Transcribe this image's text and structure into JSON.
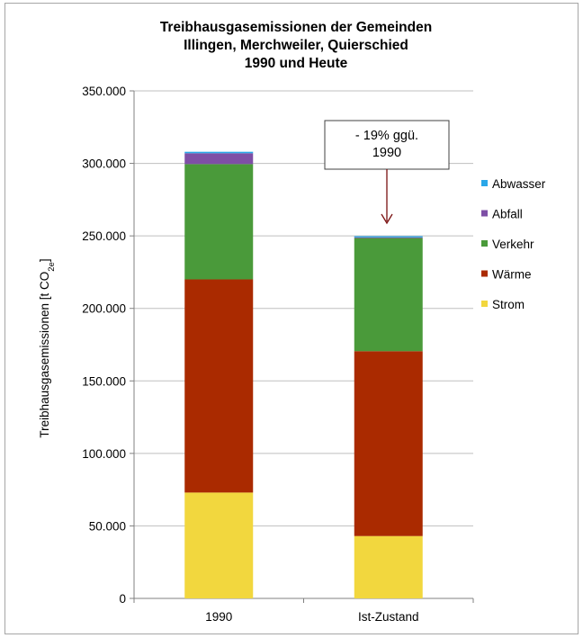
{
  "chart_data": {
    "type": "bar",
    "stacked": true,
    "title": [
      "Treibhausgasemissionen der Gemeinden",
      "Illingen, Merchweiler, Quierschied",
      "1990 und Heute"
    ],
    "ylabel": "Treibhausgasemissionen [t CO",
    "ylabel_sub": "2e",
    "ylabel_end": "]",
    "xlabel": "",
    "categories": [
      "1990",
      "Ist-Zustand"
    ],
    "ylim": [
      0,
      350000
    ],
    "yticks": [
      0,
      50000,
      100000,
      150000,
      200000,
      250000,
      300000,
      350000
    ],
    "ytick_labels": [
      "0",
      "50.000",
      "100.000",
      "150.000",
      "200.000",
      "250.000",
      "300.000",
      "350.000"
    ],
    "grid": true,
    "legend_position": "right",
    "series": [
      {
        "name": "Strom",
        "color": "#f2d73e",
        "values": [
          73000,
          43000
        ]
      },
      {
        "name": "Wärme",
        "color": "#aa2a00",
        "values": [
          147000,
          127500
        ]
      },
      {
        "name": "Verkehr",
        "color": "#4a9a3a",
        "values": [
          79500,
          78000
        ]
      },
      {
        "name": "Abfall",
        "color": "#7e4fa6",
        "values": [
          7500,
          500
        ]
      },
      {
        "name": "Abwasser",
        "color": "#2aa7e8",
        "values": [
          1000,
          800
        ]
      }
    ],
    "annotation": {
      "lines": [
        "- 19% ggü.",
        "1990"
      ],
      "target_category": "Ist-Zustand"
    }
  }
}
